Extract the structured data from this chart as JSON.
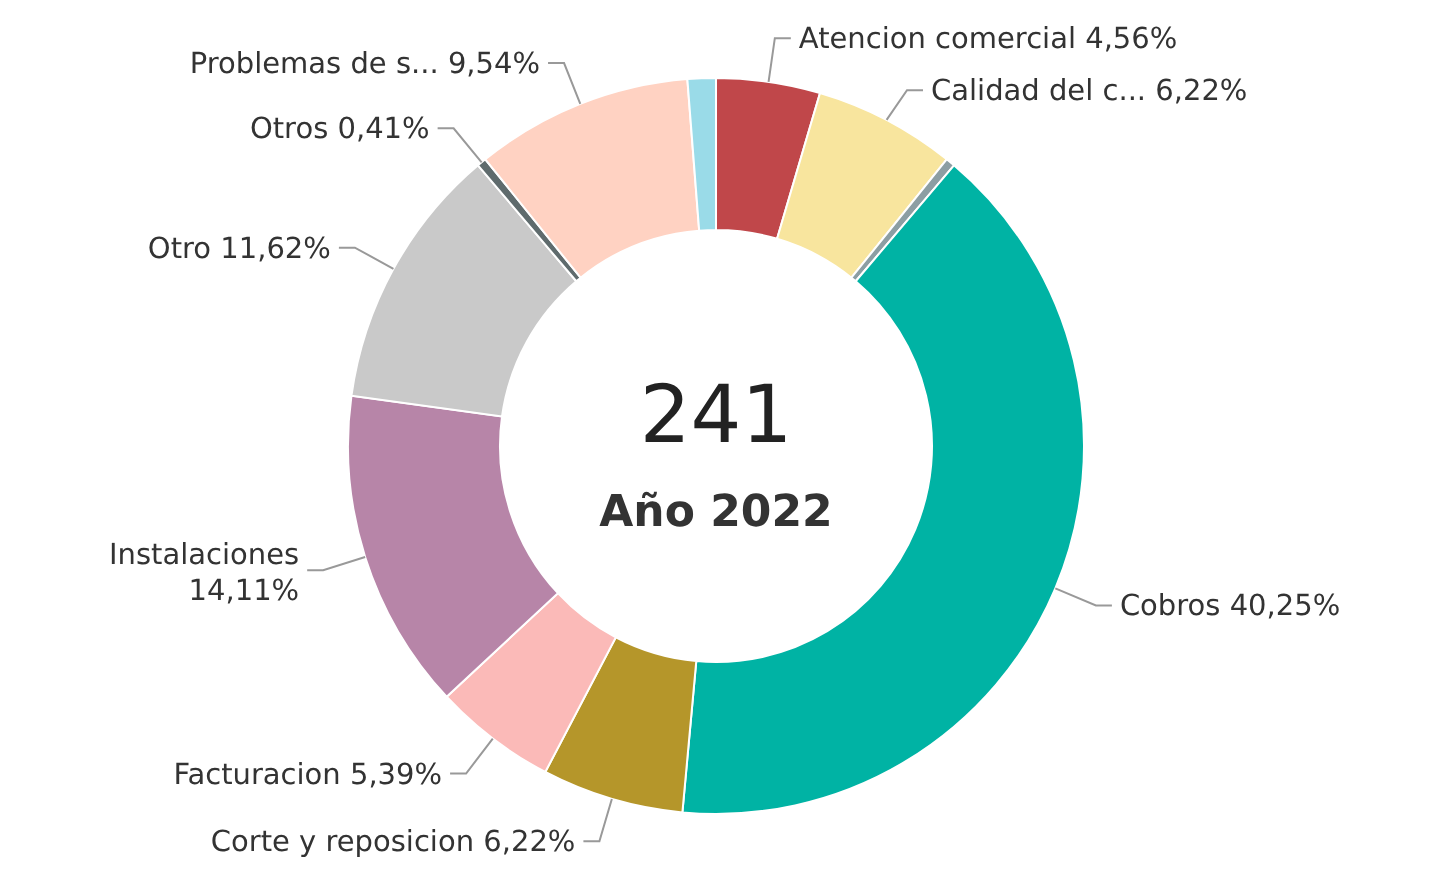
{
  "chart_data": {
    "type": "donut",
    "categories": [
      "Atencion comercial",
      "Calidad del c...",
      null,
      "Cobros",
      "Corte y reposicion",
      "Facturacion",
      "Instalaciones",
      "Otro",
      "Otros",
      "Problemas de s...",
      null
    ],
    "values": [
      4.56,
      6.22,
      0.41,
      40.25,
      6.22,
      5.39,
      14.11,
      11.62,
      0.41,
      9.54,
      1.24
    ],
    "value_labels": [
      "4,56%",
      "6,22%",
      null,
      "40,25%",
      "6,22%",
      "5,39%",
      "14,11%",
      "11,62%",
      "0,41%",
      "9,54%",
      null
    ],
    "colors": [
      "#c0474a",
      "#f8e59e",
      "#8c9ea3",
      "#00b3a4",
      "#b5962a",
      "#fbbab8",
      "#b785a8",
      "#c9c9c9",
      "#5f6b6d",
      "#ffd2c2",
      "#9adbe8"
    ],
    "annotations": [
      "241",
      "Año 2022"
    ]
  }
}
